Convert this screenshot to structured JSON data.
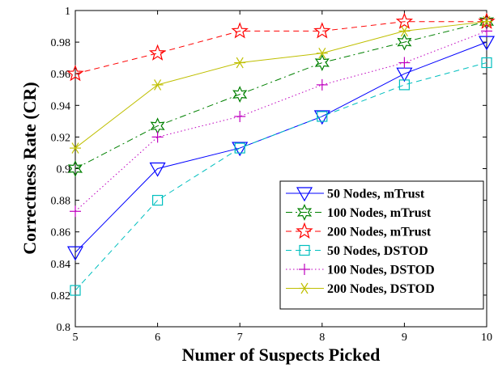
{
  "chart_data": {
    "type": "line",
    "title": "",
    "xlabel": "Numer of Suspects Picked",
    "ylabel": "Correctness Rate (CR)",
    "xlim": [
      5,
      10
    ],
    "ylim": [
      0.8,
      1.0
    ],
    "x_ticks": [
      5,
      6,
      7,
      8,
      9,
      10
    ],
    "y_ticks": [
      0.8,
      0.82,
      0.84,
      0.86,
      0.88,
      0.9,
      0.92,
      0.94,
      0.96,
      0.98,
      1
    ],
    "x_tick_labels": [
      "5",
      "6",
      "7",
      "8",
      "9",
      "10"
    ],
    "y_tick_labels": [
      "0.8",
      "0.82",
      "0.84",
      "0.86",
      "0.88",
      "0.9",
      "0.92",
      "0.94",
      "0.96",
      "0.98",
      "1"
    ],
    "grid": false,
    "legend_position": "bottom-right",
    "x": [
      5,
      6,
      7,
      8,
      9,
      10
    ],
    "series": [
      {
        "name": "50 Nodes, mTrust",
        "values": [
          0.847,
          0.9,
          0.913,
          0.933,
          0.96,
          0.98
        ],
        "color": "#0000ff",
        "marker": "triangle-down",
        "line": "solid"
      },
      {
        "name": "100 Nodes, mTrust",
        "values": [
          0.9,
          0.927,
          0.947,
          0.967,
          0.98,
          0.993
        ],
        "color": "#008000",
        "marker": "hexagram",
        "line": "dashdot"
      },
      {
        "name": "200 Nodes, mTrust",
        "values": [
          0.96,
          0.973,
          0.987,
          0.987,
          0.993,
          0.993
        ],
        "color": "#ff0000",
        "marker": "pentagram",
        "line": "dashed"
      },
      {
        "name": "50 Nodes, DSTOD",
        "values": [
          0.823,
          0.88,
          0.913,
          0.933,
          0.953,
          0.967
        ],
        "color": "#00bfbf",
        "marker": "square",
        "line": "dashed"
      },
      {
        "name": "100 Nodes, DSTOD",
        "values": [
          0.873,
          0.92,
          0.933,
          0.953,
          0.967,
          0.987
        ],
        "color": "#bf00bf",
        "marker": "plus",
        "line": "dotted"
      },
      {
        "name": "200 Nodes, DSTOD",
        "values": [
          0.913,
          0.953,
          0.967,
          0.973,
          0.987,
          0.993
        ],
        "color": "#bfbf00",
        "marker": "asterisk",
        "line": "solid"
      }
    ]
  }
}
